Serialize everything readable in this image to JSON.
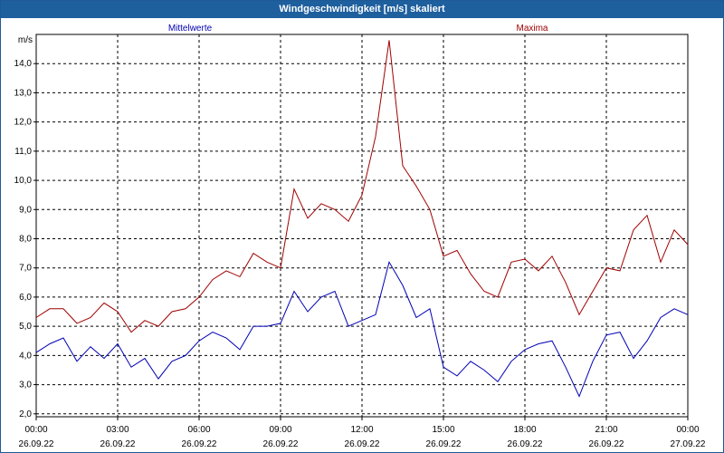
{
  "window": {
    "title": "Windgeschwindigkeit [m/s] skaliert"
  },
  "colors": {
    "series_mean": "#0000b4",
    "series_max": "#a00000",
    "grid": "#000000",
    "title_bar": "#1e5f9e"
  },
  "chart_data": {
    "type": "line",
    "title": "Windgeschwindigkeit [m/s] skaliert",
    "ylabel": "m/s",
    "ylim": [
      1.9,
      15.0
    ],
    "yticks": [
      "2,0",
      "3,0",
      "4,0",
      "5,0",
      "6,0",
      "7,0",
      "8,0",
      "9,0",
      "10,0",
      "11,0",
      "12,0",
      "13,0",
      "14,0"
    ],
    "xlim": [
      0,
      24
    ],
    "xticks": [
      {
        "time": "00:00",
        "date": "26.09.22"
      },
      {
        "time": "03:00",
        "date": "26.09.22"
      },
      {
        "time": "06:00",
        "date": "26.09.22"
      },
      {
        "time": "09:00",
        "date": "26.09.22"
      },
      {
        "time": "12:00",
        "date": "26.09.22"
      },
      {
        "time": "15:00",
        "date": "26.09.22"
      },
      {
        "time": "18:00",
        "date": "26.09.22"
      },
      {
        "time": "21:00",
        "date": "26.09.22"
      },
      {
        "time": "00:00",
        "date": "27.09.22"
      }
    ],
    "grid": true,
    "series": [
      {
        "name": "Mittelwerte",
        "x": [
          0,
          0.5,
          1,
          1.5,
          2,
          2.5,
          3,
          3.5,
          4,
          4.5,
          5,
          5.5,
          6,
          6.5,
          7,
          7.5,
          8,
          8.5,
          9,
          9.5,
          10,
          10.5,
          11,
          11.5,
          12,
          12.5,
          13,
          13.5,
          14,
          14.5,
          15,
          15.5,
          16,
          16.5,
          17,
          17.5,
          18,
          18.5,
          19,
          19.5,
          20,
          20.5,
          21,
          21.5,
          22,
          22.5,
          23,
          23.5,
          24
        ],
        "y": [
          4.1,
          4.4,
          4.6,
          3.8,
          4.3,
          3.9,
          4.4,
          3.6,
          3.9,
          3.2,
          3.8,
          4.0,
          4.5,
          4.8,
          4.6,
          4.2,
          5.0,
          5.0,
          5.1,
          6.2,
          5.5,
          6.0,
          6.2,
          5.0,
          5.2,
          5.4,
          7.2,
          6.4,
          5.3,
          5.6,
          3.6,
          3.3,
          3.8,
          3.5,
          3.1,
          3.8,
          4.2,
          4.4,
          4.5,
          3.6,
          2.6,
          3.8,
          4.7,
          4.8,
          3.9,
          4.5,
          5.3,
          5.6,
          5.4
        ]
      },
      {
        "name": "Maxima",
        "x": [
          0,
          0.5,
          1,
          1.5,
          2,
          2.5,
          3,
          3.5,
          4,
          4.5,
          5,
          5.5,
          6,
          6.5,
          7,
          7.5,
          8,
          8.5,
          9,
          9.5,
          10,
          10.5,
          11,
          11.5,
          12,
          12.5,
          13,
          13.5,
          14,
          14.5,
          15,
          15.5,
          16,
          16.5,
          17,
          17.5,
          18,
          18.5,
          19,
          19.5,
          20,
          20.5,
          21,
          21.5,
          22,
          22.5,
          23,
          23.5,
          24
        ],
        "y": [
          5.3,
          5.6,
          5.6,
          5.1,
          5.3,
          5.8,
          5.5,
          4.8,
          5.2,
          5.0,
          5.5,
          5.6,
          6.0,
          6.6,
          6.9,
          6.7,
          7.5,
          7.2,
          7.0,
          9.7,
          8.7,
          9.2,
          9.0,
          8.6,
          9.5,
          11.5,
          14.8,
          10.5,
          9.8,
          9.0,
          7.4,
          7.6,
          6.8,
          6.2,
          6.0,
          7.2,
          7.3,
          6.9,
          7.4,
          6.5,
          5.4,
          6.2,
          7.0,
          6.9,
          8.3,
          8.8,
          7.2,
          8.3,
          7.8
        ]
      }
    ]
  }
}
